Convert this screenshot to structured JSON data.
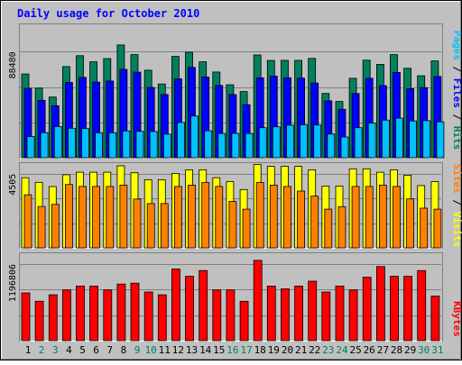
{
  "title": "Daily usage for October 2010",
  "colors": {
    "background": "#c0c0c0",
    "title": "#0000ff",
    "hits": "#00805c",
    "files": "#0000ff",
    "pages": "#00c0ff",
    "visits": "#ffff00",
    "sites": "#ff8000",
    "kbytes": "#ff0000",
    "weekend_label": "#00805c"
  },
  "chart_data": [
    {
      "type": "bar",
      "panel": "hits-files-pages",
      "categories": [
        "1",
        "2",
        "3",
        "4",
        "5",
        "6",
        "7",
        "8",
        "9",
        "10",
        "11",
        "12",
        "13",
        "14",
        "15",
        "16",
        "17",
        "18",
        "19",
        "20",
        "21",
        "22",
        "23",
        "24",
        "25",
        "26",
        "27",
        "28",
        "29",
        "30",
        "31"
      ],
      "y_tick_label": "88480",
      "ylim": [
        0,
        112000
      ],
      "series": [
        {
          "name": "Hits",
          "color": "#00805c",
          "values": [
            69800,
            58000,
            50600,
            76000,
            85100,
            80000,
            82700,
            94000,
            86000,
            73000,
            61500,
            84500,
            88000,
            80000,
            71500,
            60800,
            55200,
            85700,
            81100,
            81200,
            81200,
            82800,
            53600,
            46900,
            66200,
            81300,
            77900,
            86000,
            74600,
            68300,
            80700
          ]
        },
        {
          "name": "Files",
          "color": "#0000ff",
          "values": [
            57900,
            47900,
            43400,
            62800,
            67000,
            63100,
            64000,
            73700,
            71300,
            58600,
            52700,
            65800,
            75300,
            67300,
            60300,
            52700,
            44300,
            66600,
            68100,
            66700,
            66400,
            62300,
            47400,
            40400,
            53500,
            66200,
            60100,
            71100,
            57600,
            58500,
            67700
          ]
        },
        {
          "name": "Pages",
          "color": "#00c0ff",
          "values": [
            17700,
            20900,
            26000,
            24600,
            24300,
            20800,
            20800,
            22300,
            22000,
            21900,
            19600,
            29400,
            34700,
            22500,
            20200,
            20300,
            20200,
            25000,
            25800,
            27100,
            27400,
            27300,
            19800,
            17300,
            25000,
            28900,
            31400,
            33000,
            30700,
            30900,
            29900
          ]
        }
      ]
    },
    {
      "type": "bar",
      "panel": "visits-sites",
      "categories": [
        "1",
        "2",
        "3",
        "4",
        "5",
        "6",
        "7",
        "8",
        "9",
        "10",
        "11",
        "12",
        "13",
        "14",
        "15",
        "16",
        "17",
        "18",
        "19",
        "20",
        "21",
        "22",
        "23",
        "24",
        "25",
        "26",
        "27",
        "28",
        "29",
        "30",
        "31"
      ],
      "y_tick_label": "4505",
      "ylim": [
        0,
        5200
      ],
      "series": [
        {
          "name": "Visits",
          "color": "#ffff00",
          "values": [
            4260,
            3980,
            3720,
            4440,
            4590,
            4590,
            4590,
            4980,
            4560,
            4140,
            4140,
            4520,
            4740,
            4740,
            4260,
            4020,
            3540,
            5070,
            4950,
            4950,
            4950,
            4740,
            3750,
            3750,
            4800,
            4800,
            4590,
            4740,
            4410,
            3780,
            4020
          ]
        },
        {
          "name": "Sites",
          "color": "#ff8000",
          "values": [
            3220,
            2510,
            2640,
            3850,
            3730,
            3730,
            3730,
            3810,
            2960,
            2690,
            2690,
            3730,
            3810,
            3970,
            3730,
            2820,
            2350,
            3970,
            3810,
            3730,
            3450,
            3140,
            2350,
            2500,
            3730,
            3730,
            3810,
            3730,
            2970,
            2410,
            2350
          ]
        }
      ]
    },
    {
      "type": "bar",
      "panel": "kbytes",
      "categories": [
        "1",
        "2",
        "3",
        "4",
        "5",
        "6",
        "7",
        "8",
        "9",
        "10",
        "11",
        "12",
        "13",
        "14",
        "15",
        "16",
        "17",
        "18",
        "19",
        "20",
        "21",
        "22",
        "23",
        "24",
        "25",
        "26",
        "27",
        "28",
        "29",
        "30",
        "31"
      ],
      "y_tick_label": "1196806",
      "ylim": [
        0,
        1380000
      ],
      "series": [
        {
          "name": "KBytes",
          "color": "#ff0000",
          "values": [
            747000,
            615000,
            717000,
            793000,
            853000,
            853000,
            793000,
            885000,
            899000,
            761000,
            717000,
            1119000,
            1005000,
            1095000,
            793000,
            793000,
            615000,
            1255000,
            853000,
            809000,
            853000,
            929000,
            761000,
            853000,
            793000,
            991000,
            1157000,
            1005000,
            1005000,
            1095000,
            697000
          ]
        }
      ]
    }
  ],
  "x_labels": [
    {
      "label": "1",
      "weekend": false
    },
    {
      "label": "2",
      "weekend": true
    },
    {
      "label": "3",
      "weekend": true
    },
    {
      "label": "4",
      "weekend": false
    },
    {
      "label": "5",
      "weekend": false
    },
    {
      "label": "6",
      "weekend": false
    },
    {
      "label": "7",
      "weekend": false
    },
    {
      "label": "8",
      "weekend": false
    },
    {
      "label": "9",
      "weekend": true
    },
    {
      "label": "10",
      "weekend": true
    },
    {
      "label": "11",
      "weekend": false
    },
    {
      "label": "12",
      "weekend": false
    },
    {
      "label": "13",
      "weekend": false
    },
    {
      "label": "14",
      "weekend": false
    },
    {
      "label": "15",
      "weekend": false
    },
    {
      "label": "16",
      "weekend": true
    },
    {
      "label": "17",
      "weekend": true
    },
    {
      "label": "18",
      "weekend": false
    },
    {
      "label": "19",
      "weekend": false
    },
    {
      "label": "20",
      "weekend": false
    },
    {
      "label": "21",
      "weekend": false
    },
    {
      "label": "22",
      "weekend": false
    },
    {
      "label": "23",
      "weekend": true
    },
    {
      "label": "24",
      "weekend": true
    },
    {
      "label": "25",
      "weekend": false
    },
    {
      "label": "26",
      "weekend": false
    },
    {
      "label": "27",
      "weekend": false
    },
    {
      "label": "28",
      "weekend": false
    },
    {
      "label": "29",
      "weekend": false
    },
    {
      "label": "30",
      "weekend": true
    },
    {
      "label": "31",
      "weekend": true
    }
  ],
  "legends": {
    "panel1": [
      {
        "text": "Pages",
        "color": "#00c0ff"
      },
      {
        "text": " / ",
        "color": "#000000"
      },
      {
        "text": "Files",
        "color": "#0000ff"
      },
      {
        "text": " / ",
        "color": "#000000"
      },
      {
        "text": "Hits",
        "color": "#00805c"
      }
    ],
    "panel2": [
      {
        "text": "Sites",
        "color": "#ff8000"
      },
      {
        "text": " / ",
        "color": "#000000"
      },
      {
        "text": "Visits",
        "color": "#ffff00"
      }
    ],
    "panel3": [
      {
        "text": "KBytes",
        "color": "#ff0000"
      }
    ]
  }
}
